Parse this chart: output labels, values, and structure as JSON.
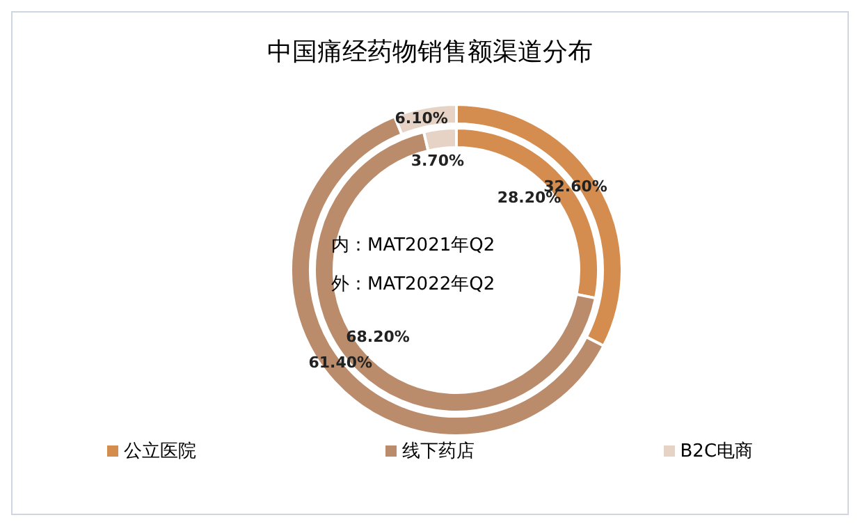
{
  "chart_data": {
    "type": "donut",
    "title": "中国痛经药物销售额渠道分布",
    "categories": [
      "公立医院",
      "线下药店",
      "B2C电商"
    ],
    "colors": [
      "#d48c4f",
      "#ba8c6c",
      "#e6d3c5"
    ],
    "series": [
      {
        "values": [
          28.2,
          68.2,
          3.7
        ],
        "value_labels": [
          "28.20%",
          "68.20%",
          "3.70%"
        ]
      },
      {
        "values": [
          32.6,
          61.4,
          6.1
        ],
        "value_labels": [
          "32.60%",
          "61.40%",
          "6.10%"
        ]
      }
    ],
    "annotations": [
      "内：MAT2021年Q2",
      "外：MAT2022年Q2"
    ],
    "legend": "bottom"
  }
}
